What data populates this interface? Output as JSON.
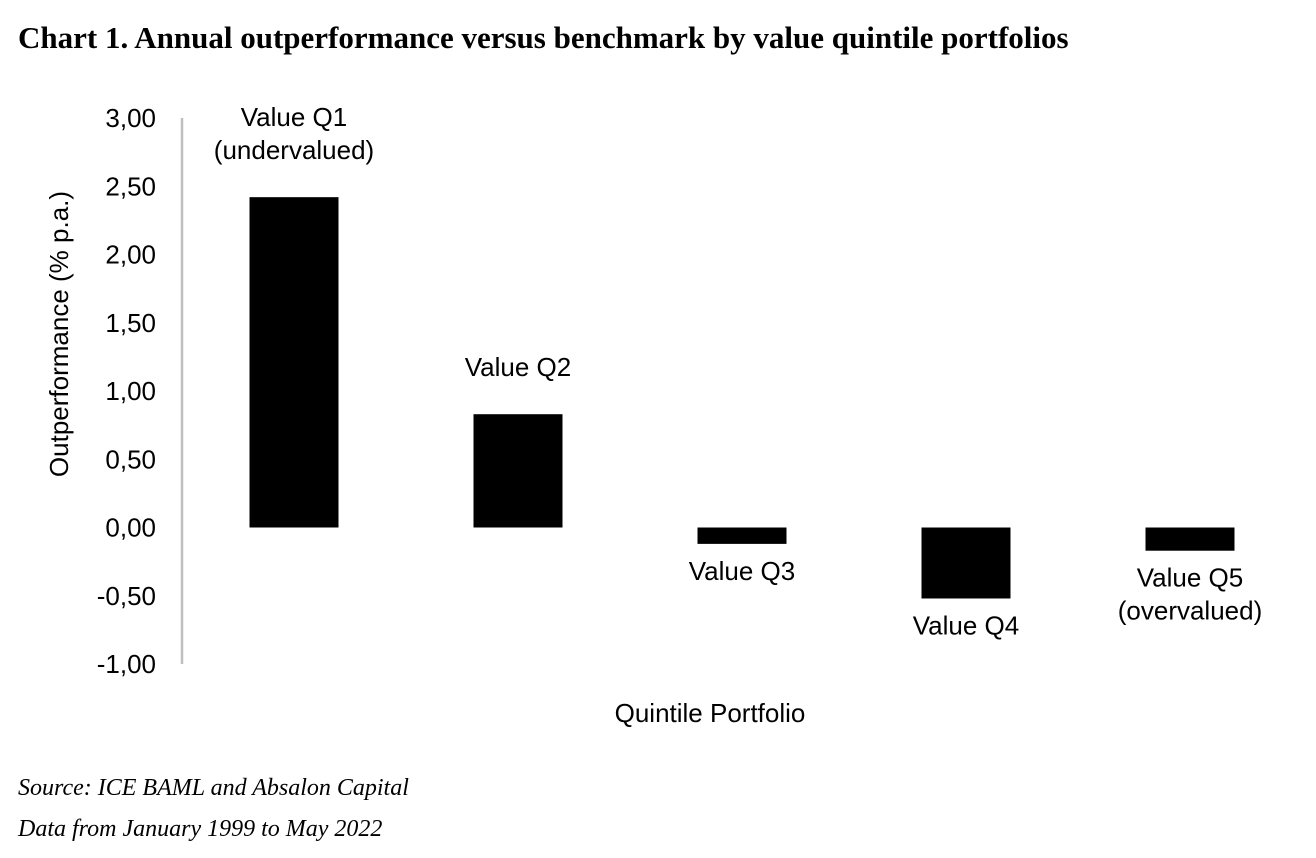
{
  "chart_data": {
    "type": "bar",
    "title": "Chart 1. Annual outperformance versus benchmark by value quintile portfolios",
    "xlabel": "Quintile Portfolio",
    "ylabel": "Outperformance (% p.a.)",
    "ylim": [
      -1.0,
      3.0
    ],
    "yticks": [
      "3,00",
      "2,50",
      "2,00",
      "1,50",
      "1,00",
      "0,50",
      "0,00",
      "-0,50",
      "-1,00"
    ],
    "ytick_values": [
      3.0,
      2.5,
      2.0,
      1.5,
      1.0,
      0.5,
      0.0,
      -0.5,
      -1.0
    ],
    "categories": [
      [
        "Value Q1",
        "(undervalued)"
      ],
      [
        "Value Q2"
      ],
      [
        "Value Q3"
      ],
      [
        "Value Q4"
      ],
      [
        "Value Q5",
        "(overvalued)"
      ]
    ],
    "values": [
      2.42,
      0.83,
      -0.12,
      -0.52,
      -0.17
    ],
    "bar_color": "#000000",
    "axis_color": "#bfbfbf",
    "grid": false,
    "legend": "none"
  },
  "footer": {
    "source": "Source: ICE BAML and Absalon Capital",
    "date_range": "Data from January 1999 to May 2022"
  }
}
